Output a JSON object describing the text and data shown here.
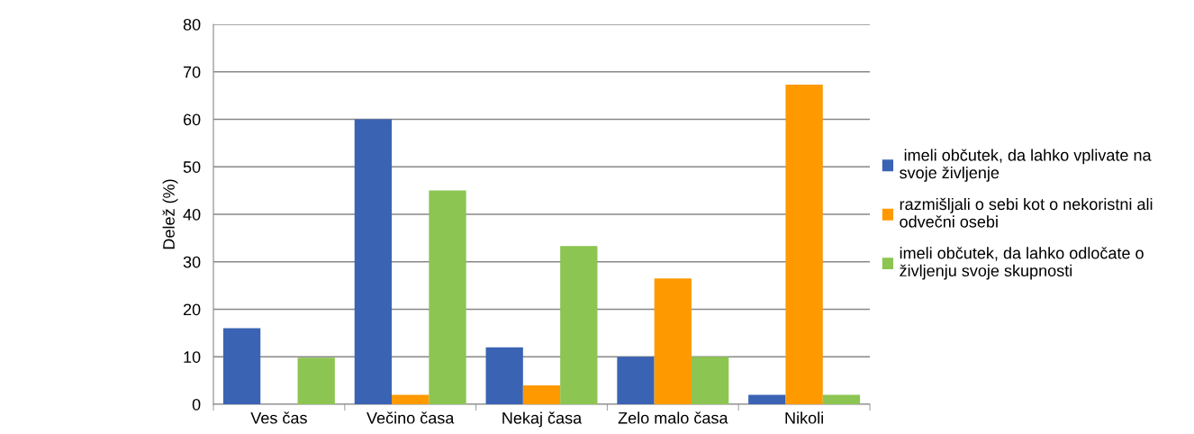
{
  "chart_data": {
    "type": "bar",
    "ylabel": "Delež (%)",
    "categories": [
      "Ves čas",
      "Večino časa",
      "Nekaj časa",
      "Zelo malo časa",
      "Nikoli"
    ],
    "series": [
      {
        "name": " imeli občutek, da lahko vplivate na\nsvoje življenje",
        "color": "#3a63b4",
        "values": [
          16,
          60,
          12,
          10,
          2
        ]
      },
      {
        "name": "razmišljali o sebi kot o nekoristni ali\nodvečni osebi",
        "color": "#ff9900",
        "values": [
          0,
          2,
          4,
          26.5,
          67.3
        ]
      },
      {
        "name": "imeli občutek, da lahko odločate o\nživljenju svoje skupnosti",
        "color": "#8cc552",
        "values": [
          9.8,
          45,
          33.3,
          10,
          2
        ]
      }
    ],
    "ylim": [
      0,
      80
    ],
    "yticks": [
      0,
      10,
      20,
      30,
      40,
      50,
      60,
      70,
      80
    ],
    "grid": "y",
    "legend": "right"
  }
}
